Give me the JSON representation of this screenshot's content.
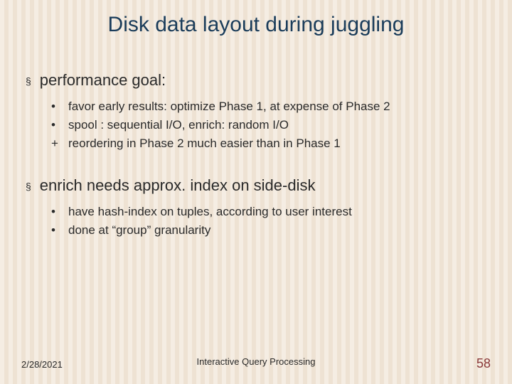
{
  "title": "Disk data layout during juggling",
  "sections": [
    {
      "heading": "performance goal:",
      "items": [
        {
          "marker": "•",
          "text": "favor early results: optimize Phase 1, at expense of Phase 2"
        },
        {
          "marker": "•",
          "text": "spool : sequential I/O, enrich: random I/O"
        },
        {
          "marker": "+",
          "text": "reordering in Phase 2 much easier than in Phase 1"
        }
      ]
    },
    {
      "heading": "enrich needs approx. index on side-disk",
      "items": [
        {
          "marker": "•",
          "text": "have hash-index on tuples, according to user interest"
        },
        {
          "marker": "•",
          "text": "done at “group” granularity"
        }
      ]
    }
  ],
  "footer": {
    "date": "2/28/2021",
    "title": "Interactive Query Processing",
    "page": "58"
  },
  "section_bullet": "§"
}
